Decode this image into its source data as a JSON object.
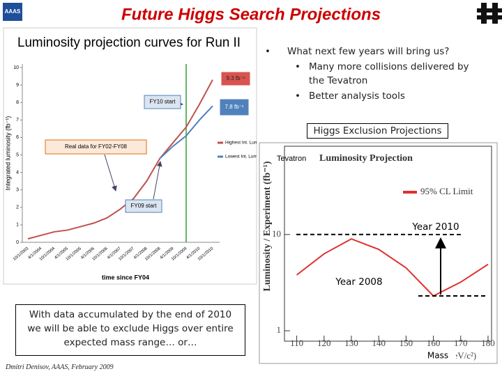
{
  "header": {
    "title": "Future Higgs Search Projections",
    "logo_text": "AAAS"
  },
  "bullets": {
    "main": "What next few years will bring us?",
    "sub": [
      "Many more collisions delivered by the Tevatron",
      "Better analysis tools"
    ]
  },
  "right_heading": "Higgs Exclusion Projections",
  "conclusion": [
    "With data accumulated by the end of 2010",
    "we will be able to exclude Higgs over entire",
    "expected mass range… or…"
  ],
  "footer": "Dmitri Denisov, AAAS, February 2009",
  "chart_data": [
    {
      "type": "line",
      "title": "Luminosity projection curves for Run II",
      "x_label": "time since FY04",
      "y_label": "Integrated luminosity (fb⁻¹)",
      "categories": [
        "10/1/2003",
        "4/1/2004",
        "10/1/2004",
        "4/1/2005",
        "10/1/2005",
        "4/1/2006",
        "10/1/2006",
        "4/1/2007",
        "10/1/2007",
        "4/1/2008",
        "10/1/2008",
        "4/1/2009",
        "10/1/2009",
        "4/1/2010",
        "10/1/2010"
      ],
      "series": [
        {
          "name": "Highest Int. Lum",
          "color": "#c0504d",
          "values": [
            0.2,
            0.4,
            0.6,
            0.7,
            0.9,
            1.1,
            1.4,
            1.9,
            2.5,
            3.5,
            4.8,
            5.7,
            6.6,
            7.9,
            9.3
          ]
        },
        {
          "name": "Lowest Int. Lum",
          "color": "#4f81bd",
          "values": [
            null,
            null,
            null,
            null,
            null,
            null,
            null,
            null,
            null,
            null,
            4.8,
            5.5,
            6.1,
            7.0,
            7.8
          ]
        }
      ],
      "ylim": [
        0,
        10
      ],
      "yticks": [
        0,
        1,
        2,
        3,
        4,
        5,
        6,
        7,
        8,
        9,
        10
      ],
      "annotations": [
        "9.3 fb⁻¹",
        "7.8 fb⁻¹",
        "FY10 start",
        "Real data for FY02-FY08",
        "FY09 start"
      ]
    },
    {
      "type": "line",
      "title": "Luminosity Projection",
      "logo_text": "Tevatron",
      "y_label": "Luminosity / Experiment (fb⁻¹)",
      "x_label": "(GeV/c²)",
      "x_overlay_label": "Mass",
      "x": [
        110,
        120,
        130,
        140,
        150,
        160,
        170,
        180
      ],
      "series": [
        {
          "name": "95% CL Limit",
          "color": "#e03030",
          "values": [
            3.8,
            6.3,
            9,
            7,
            4.5,
            2.3,
            3.2,
            4.9
          ]
        }
      ],
      "xlim": [
        105,
        180
      ],
      "xticks": [
        110,
        120,
        130,
        140,
        150,
        160,
        170,
        180
      ],
      "ylim": [
        1,
        70
      ],
      "yticks": [
        1,
        10
      ],
      "log_scale": true,
      "reference_lines": [
        {
          "label": "Year 2010",
          "value": 10
        },
        {
          "label": "Year 2008",
          "value": 2.3
        }
      ]
    }
  ]
}
